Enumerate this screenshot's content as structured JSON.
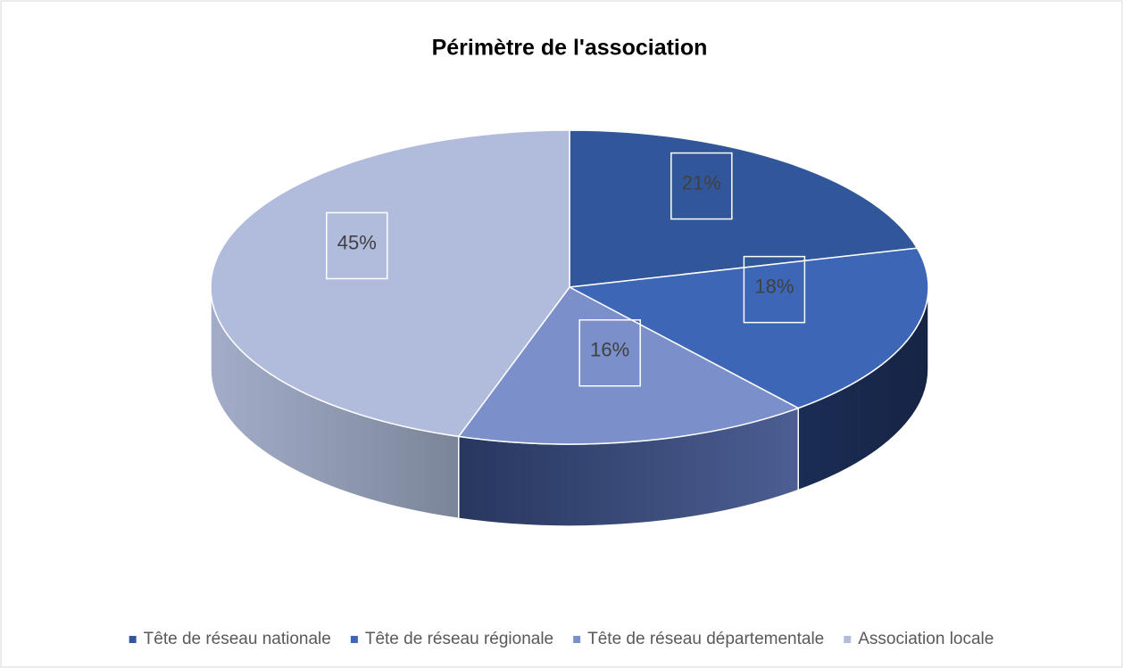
{
  "chart_data": {
    "type": "pie3d",
    "title": "Périmètre de l'association",
    "categories": [
      "Tête de réseau nationale",
      "Tête de réseau régionale",
      "Tête de réseau départementale",
      "Association locale"
    ],
    "values": [
      21,
      18,
      16,
      45
    ],
    "value_labels": [
      "21%",
      "18%",
      "16%",
      "45%"
    ],
    "colors": [
      "#31579a",
      "#3d66b7",
      "#7b8fcb",
      "#b1bcdd"
    ],
    "legend": "bottom"
  }
}
